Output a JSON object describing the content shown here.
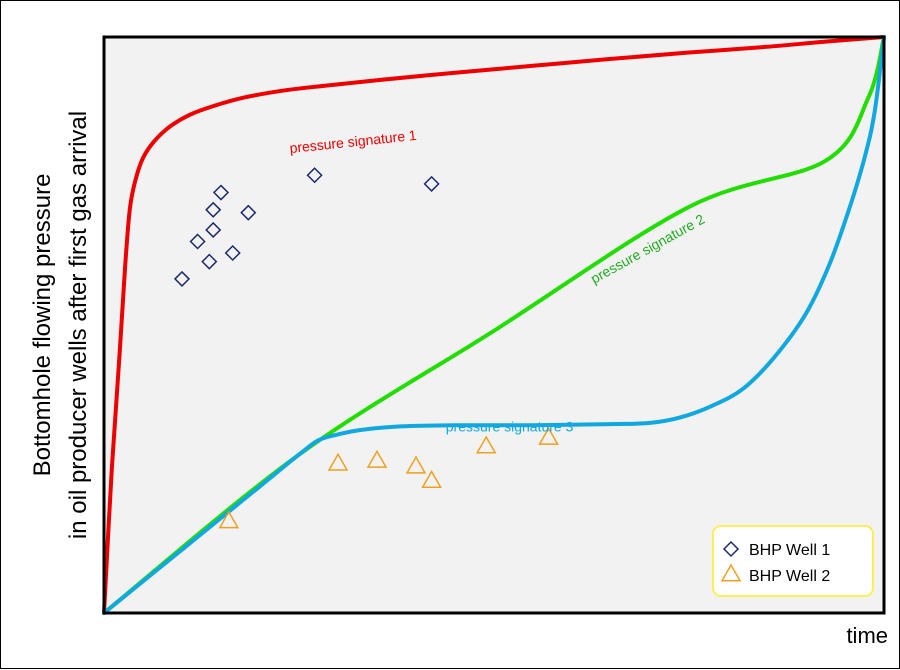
{
  "chart_data": {
    "type": "line",
    "xlabel": "time",
    "ylabel_lines": [
      "Bottomhole flowing pressure",
      "in oil producer wells after first gas arrival"
    ],
    "xlim": [
      0,
      100
    ],
    "ylim": [
      0,
      100
    ],
    "grid": false,
    "ticks": false,
    "background": "#f2f2f2",
    "series": [
      {
        "name": "pressure signature 1",
        "color": "#ee0000",
        "label_color": "#ee0000",
        "x": [
          0,
          1,
          2,
          2.7,
          3.3,
          4,
          5,
          6.5,
          8.5,
          11,
          14,
          18,
          23,
          28,
          35,
          45,
          55,
          65,
          75,
          85,
          92.5,
          100
        ],
        "y": [
          0,
          25,
          45,
          60,
          70,
          75,
          79,
          82,
          84.5,
          86.5,
          88,
          89.5,
          90.7,
          91.5,
          92.5,
          93.8,
          95,
          96.2,
          97.3,
          98.3,
          99.2,
          100
        ],
        "label_pos": [
          32,
          81
        ],
        "label_rotate": -6
      },
      {
        "name": "pressure signature 2",
        "color": "#22dd00",
        "label_color": "#22aa22",
        "x": [
          0,
          25,
          50,
          75,
          92.5,
          98,
          100
        ],
        "y": [
          0,
          27.5,
          49,
          70.5,
          78.5,
          89.5,
          100
        ],
        "label_pos": [
          70,
          62.5
        ],
        "label_rotate": -29
      },
      {
        "name": "pressure signature 3",
        "color": "#11a8e0",
        "label_color": "#11a8e0",
        "x": [
          0,
          10,
          20,
          25,
          27.5,
          30,
          33,
          38,
          45,
          55,
          65,
          70,
          74,
          78,
          82,
          86,
          90,
          93,
          95.5,
          97.5,
          98.8,
          100
        ],
        "y": [
          0,
          11,
          22,
          27.5,
          30,
          31,
          31.8,
          32.4,
          32.6,
          32.6,
          32.8,
          33,
          34,
          36,
          39,
          44.5,
          52,
          60.5,
          70,
          79,
          87,
          100
        ],
        "label_pos": [
          52,
          31.5
        ],
        "label_rotate": 0
      }
    ],
    "scatter": [
      {
        "name": "BHP Well 1",
        "marker": "diamond",
        "color": "#1a2a6c",
        "x": [
          10,
          12,
          13.5,
          14,
          14,
          15,
          16.5,
          18.5,
          27,
          42
        ],
        "y": [
          58,
          64.5,
          61,
          66.5,
          70,
          73,
          62.5,
          69.5,
          76,
          74.5
        ]
      },
      {
        "name": "BHP Well 2",
        "marker": "triangle",
        "color": "#f0a020",
        "x": [
          16,
          30,
          35,
          40,
          42,
          49,
          57
        ],
        "y": [
          16,
          26,
          26.5,
          25.5,
          23,
          29,
          30.5
        ]
      }
    ],
    "legend": {
      "placement": "bottom-right",
      "border_color": "#ffee55",
      "entries": [
        "BHP Well 1",
        "BHP Well 2"
      ]
    }
  }
}
